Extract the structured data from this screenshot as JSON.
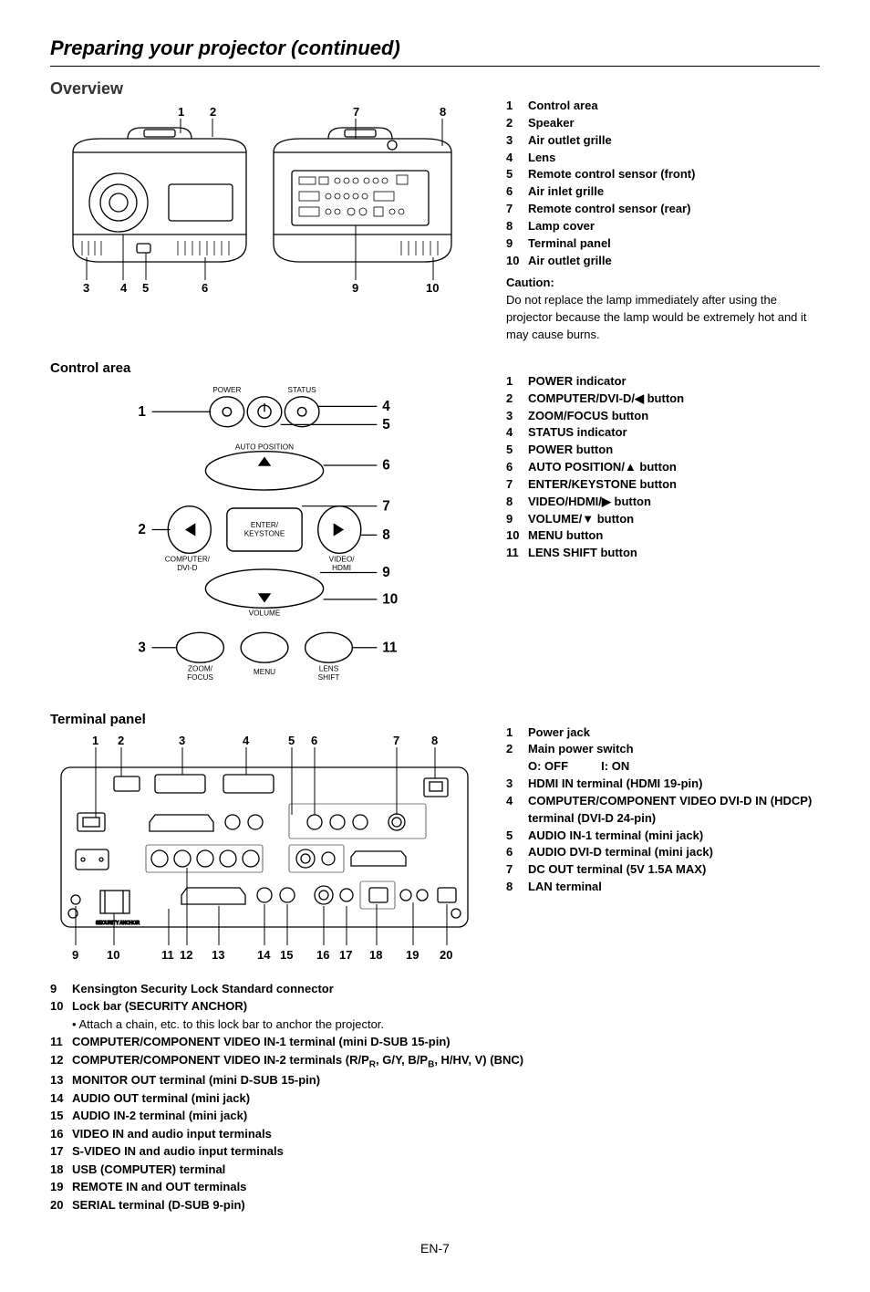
{
  "page_title": "Preparing your projector (continued)",
  "page_number": "EN-7",
  "overview": {
    "heading": "Overview",
    "diagram": {
      "top_labels": [
        "1",
        "2",
        "7",
        "8"
      ],
      "bottom_labels": [
        "3",
        "4",
        "5",
        "6",
        "9",
        "10"
      ],
      "stroke": "#000000",
      "fill": "#ffffff"
    },
    "items": [
      {
        "n": "1",
        "t": "Control area"
      },
      {
        "n": "2",
        "t": "Speaker"
      },
      {
        "n": "3",
        "t": "Air outlet grille"
      },
      {
        "n": "4",
        "t": "Lens"
      },
      {
        "n": "5",
        "t": "Remote control sensor (front)"
      },
      {
        "n": "6",
        "t": "Air inlet grille"
      },
      {
        "n": "7",
        "t": "Remote control sensor (rear)"
      },
      {
        "n": "8",
        "t": "Lamp cover"
      },
      {
        "n": "9",
        "t": "Terminal panel"
      },
      {
        "n": "10",
        "t": "Air outlet grille"
      }
    ],
    "caution_title": "Caution:",
    "caution_body": "Do not replace the lamp immediately after using the projector because the lamp would be extremely hot and it may cause burns."
  },
  "control_area": {
    "heading": "Control area",
    "diagram": {
      "left_nums": [
        "1",
        "2",
        "3"
      ],
      "right_nums": [
        "4",
        "5",
        "6",
        "7",
        "8",
        "9",
        "10",
        "11"
      ],
      "labels": {
        "power": "POWER",
        "status": "STATUS",
        "auto": "AUTO POSITION",
        "computer": "COMPUTER/\nDVI-D",
        "enter": "ENTER/\nKEYSTONE",
        "video": "VIDEO/\nHDMI",
        "volume": "VOLUME",
        "zoom": "ZOOM/\nFOCUS",
        "menu": "MENU",
        "lens": "LENS\nSHIFT"
      },
      "stroke": "#000000"
    },
    "items": [
      {
        "n": "1",
        "t": "POWER indicator"
      },
      {
        "n": "2",
        "t": "COMPUTER/DVI-D/◀ button"
      },
      {
        "n": "3",
        "t": "ZOOM/FOCUS button"
      },
      {
        "n": "4",
        "t": "STATUS indicator"
      },
      {
        "n": "5",
        "t": "POWER button"
      },
      {
        "n": "6",
        "t": "AUTO POSITION/▲ button"
      },
      {
        "n": "7",
        "t": "ENTER/KEYSTONE button"
      },
      {
        "n": "8",
        "t": "VIDEO/HDMI/▶ button"
      },
      {
        "n": "9",
        "t": "VOLUME/▼ button"
      },
      {
        "n": "10",
        "t": "MENU button"
      },
      {
        "n": "11",
        "t": "LENS SHIFT button"
      }
    ]
  },
  "terminal_panel": {
    "heading": "Terminal panel",
    "diagram": {
      "top_nums": [
        "1",
        "2",
        "3",
        "4",
        "5",
        "6",
        "7",
        "8"
      ],
      "bottom_nums": [
        "9",
        "10",
        "11",
        "12",
        "13",
        "14",
        "15",
        "16",
        "17",
        "18",
        "19",
        "20"
      ],
      "stroke": "#000000"
    },
    "right_items": [
      {
        "n": "1",
        "t": "Power jack"
      },
      {
        "n": "2",
        "t": "Main power switch"
      },
      {
        "n": "",
        "t": "O: OFF          I: ON"
      },
      {
        "n": "3",
        "t": "HDMI IN terminal (HDMI 19-pin)"
      },
      {
        "n": "4",
        "t": "COMPUTER/COMPONENT VIDEO DVI-D IN (HDCP) terminal (DVI-D 24-pin)"
      },
      {
        "n": "5",
        "t": "AUDIO IN-1 terminal (mini jack)"
      },
      {
        "n": "6",
        "t": "AUDIO DVI-D terminal (mini jack)"
      },
      {
        "n": "7",
        "t": "DC OUT terminal (5V 1.5A MAX)"
      },
      {
        "n": "8",
        "t": "LAN terminal"
      }
    ],
    "bottom_items": [
      {
        "n": "9",
        "t": "Kensington Security Lock Standard connector"
      },
      {
        "n": "10",
        "t": "Lock bar (SECURITY ANCHOR)"
      },
      {
        "n": "",
        "t": "•   Attach a chain, etc. to this lock bar to anchor the projector.",
        "sub": true
      },
      {
        "n": "11",
        "t": "COMPUTER/COMPONENT VIDEO IN-1 terminal (mini D-SUB 15-pin)"
      },
      {
        "n": "12",
        "t": "COMPUTER/COMPONENT VIDEO IN-2 terminals (R/PR, G/Y, B/PB, H/HV, V) (BNC)",
        "rich": true
      },
      {
        "n": "13",
        "t": "MONITOR OUT terminal (mini D-SUB 15-pin)"
      },
      {
        "n": "14",
        "t": "AUDIO OUT terminal (mini jack)"
      },
      {
        "n": "15",
        "t": "AUDIO IN-2 terminal (mini jack)"
      },
      {
        "n": "16",
        "t": "VIDEO IN and audio input terminals"
      },
      {
        "n": "17",
        "t": "S-VIDEO IN and audio input terminals"
      },
      {
        "n": "18",
        "t": "USB (COMPUTER) terminal"
      },
      {
        "n": "19",
        "t": "REMOTE IN and OUT terminals"
      },
      {
        "n": "20",
        "t": "SERIAL terminal (D-SUB 9-pin)"
      }
    ]
  }
}
